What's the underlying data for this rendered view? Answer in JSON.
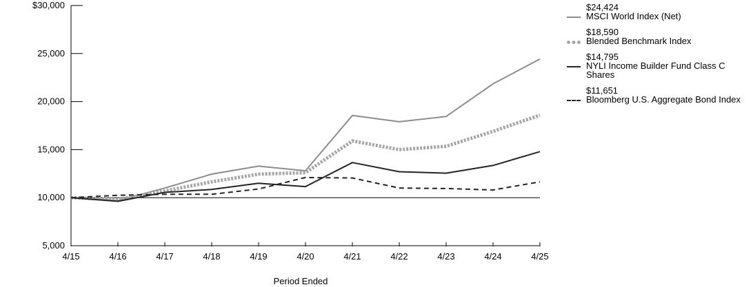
{
  "chart_data": {
    "type": "line",
    "title": "",
    "xlabel": "Period Ended",
    "ylabel": "",
    "categories": [
      "4/15",
      "4/16",
      "4/17",
      "4/18",
      "4/19",
      "4/20",
      "4/21",
      "4/22",
      "4/23",
      "4/24",
      "4/25"
    ],
    "ylim": [
      5000,
      30000
    ],
    "yticks": [
      5000,
      10000,
      15000,
      20000,
      25000,
      30000
    ],
    "ytick_labels": [
      "5,000",
      "10,000",
      "15,000",
      "20,000",
      "25,000",
      "$30,000"
    ],
    "reference_line": 10000,
    "legend_position": "right",
    "grid": false,
    "series": [
      {
        "name": "MSCI World Index (Net)",
        "final_value_label": "$24,424",
        "style": "solid",
        "color": "#8c8c8c",
        "values": [
          10000,
          9700,
          11000,
          12450,
          13280,
          12800,
          18550,
          17900,
          18450,
          21850,
          24424
        ]
      },
      {
        "name": "Blended Benchmark Index",
        "final_value_label": "$18,590",
        "style": "dotted-thick",
        "color": "#a6a6a6",
        "values": [
          10000,
          9800,
          10700,
          11650,
          12450,
          12600,
          15900,
          15000,
          15350,
          16900,
          18590
        ]
      },
      {
        "name": "NYLI Income Builder Fund Class C Shares",
        "final_value_label": "$14,795",
        "style": "solid",
        "color": "#222222",
        "values": [
          10000,
          9620,
          10550,
          10850,
          11500,
          11150,
          13650,
          12700,
          12550,
          13350,
          14795
        ]
      },
      {
        "name": "Bloomberg  U.S. Aggregate Bond Index",
        "final_value_label": "$11,651",
        "style": "dashed",
        "color": "#222222",
        "values": [
          10000,
          10250,
          10350,
          10350,
          10900,
          12100,
          12050,
          11000,
          10950,
          10800,
          11651
        ]
      }
    ]
  }
}
